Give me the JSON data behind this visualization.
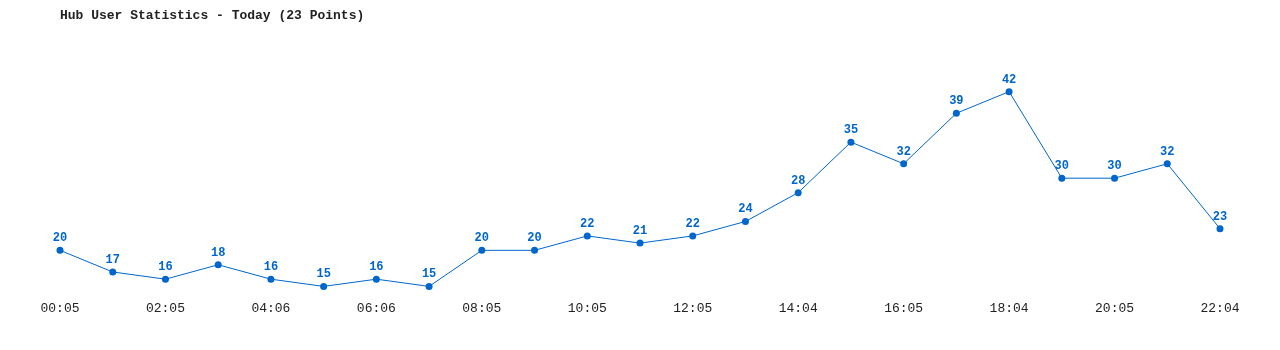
{
  "chart_data": {
    "type": "line",
    "title": "Hub User Statistics - Today (23 Points)",
    "categories": [
      "00:05",
      null,
      "02:05",
      null,
      "04:06",
      null,
      "06:06",
      null,
      "08:05",
      null,
      "10:05",
      null,
      "12:05",
      null,
      "14:04",
      null,
      "16:05",
      null,
      "18:04",
      null,
      "20:05",
      null,
      "22:04"
    ],
    "series": [
      {
        "color": "#0066cc",
        "values": [
          20,
          17,
          16,
          18,
          16,
          15,
          16,
          15,
          20,
          20,
          22,
          21,
          22,
          24,
          28,
          35,
          32,
          39,
          42,
          30,
          30,
          32,
          23
        ]
      }
    ],
    "data_labels": true,
    "grid": false,
    "legend": false,
    "marker": "circle",
    "line_style": "solid",
    "tick_labels": "x"
  }
}
